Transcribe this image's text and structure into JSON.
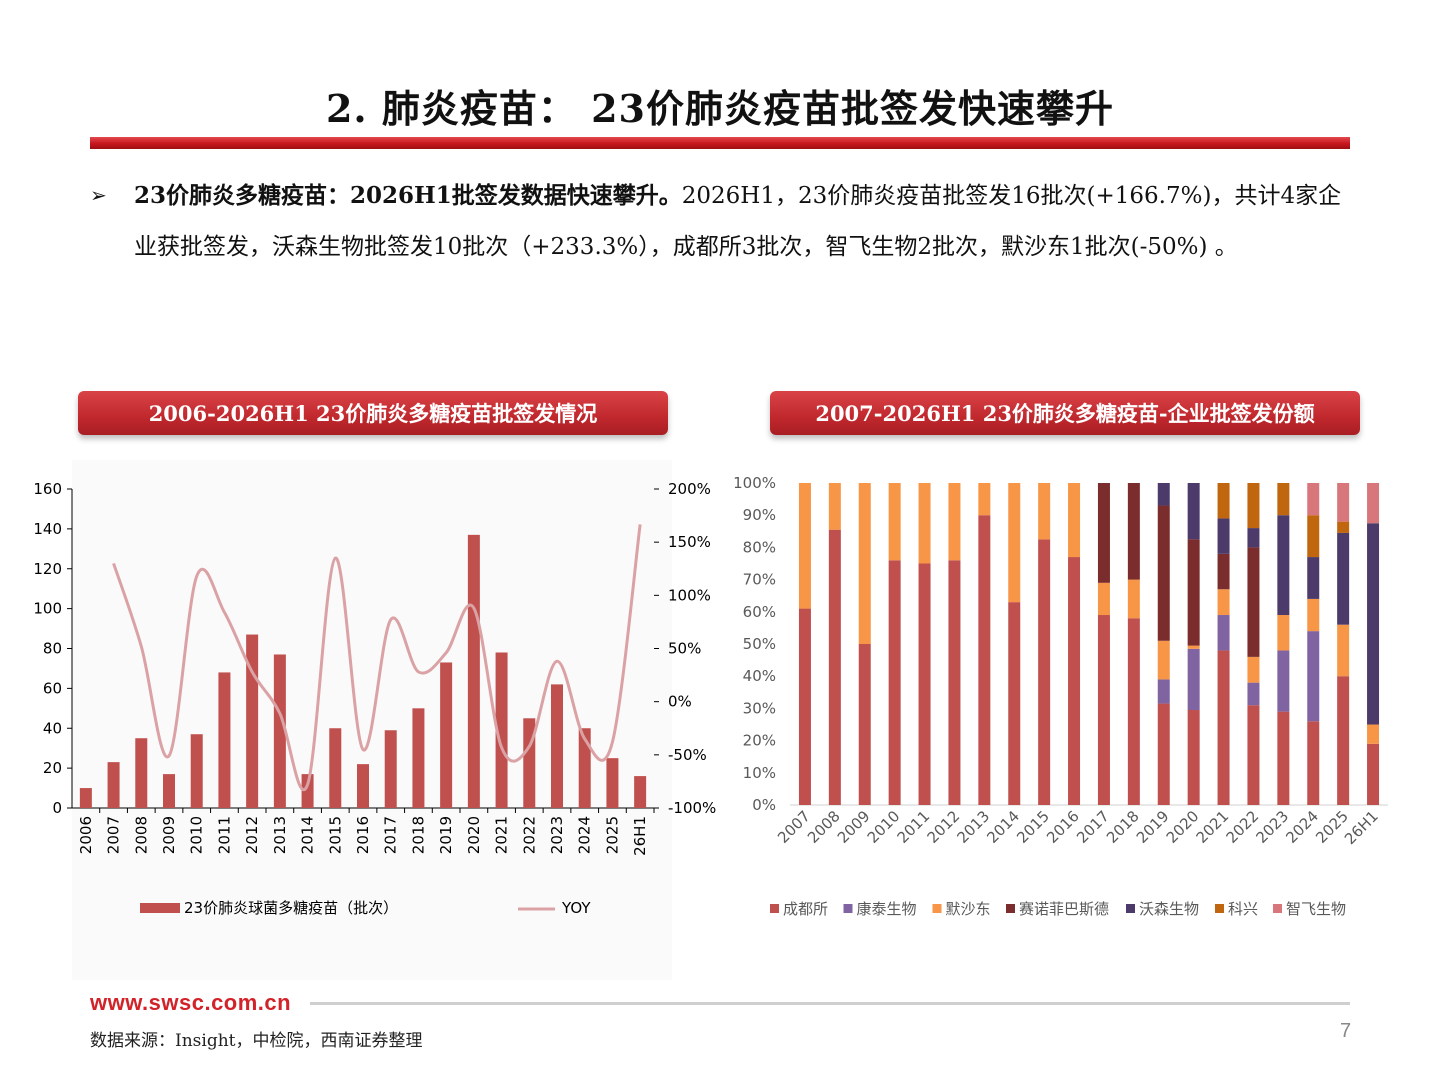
{
  "page": {
    "title": "2. 肺炎疫苗： 23价肺炎疫苗批签发快速攀升",
    "bullet_arrow": "➢",
    "bullet_bold": "23价肺炎多糖疫苗：2026H1批签发数据快速攀升。",
    "bullet_text": "2026H1，23价肺炎疫苗批签发16批次(+166.7%)，共计4家企业获批签发，沃森生物批签发10批次（+233.3%），成都所3批次，智飞生物2批次，默沙东1批次(-50%) 。",
    "footer_url": "www.swsc.com.cn",
    "source": "数据来源：Insight，中检院，西南证券整理",
    "page_number": "7"
  },
  "colors": {
    "accent_red": "#c8161d",
    "bar_red": "#c0504d",
    "yoy_line": "#dba2a5"
  },
  "chart_data": [
    {
      "type": "bar",
      "title": "2006-2026H1 23价肺炎多糖疫苗批签发情况",
      "categories": [
        "2006",
        "2007",
        "2008",
        "2009",
        "2010",
        "2011",
        "2012",
        "2013",
        "2014",
        "2015",
        "2016",
        "2017",
        "2018",
        "2019",
        "2020",
        "2021",
        "2022",
        "2023",
        "2024",
        "2025",
        "26H1"
      ],
      "series": [
        {
          "name": "23价肺炎球菌多糖疫苗（批次）",
          "type": "bar",
          "axis": "left",
          "values": [
            10,
            23,
            35,
            17,
            37,
            68,
            87,
            77,
            17,
            40,
            22,
            39,
            50,
            73,
            137,
            78,
            45,
            62,
            40,
            25,
            16
          ]
        },
        {
          "name": "YOY",
          "type": "line",
          "axis": "right",
          "values": [
            null,
            1.3,
            0.52,
            -0.51,
            1.18,
            0.84,
            0.28,
            -0.11,
            -0.78,
            1.35,
            -0.45,
            0.77,
            0.28,
            0.46,
            0.88,
            -0.43,
            -0.42,
            0.38,
            -0.35,
            -0.38,
            1.667
          ]
        }
      ],
      "ylim": [
        0,
        160
      ],
      "yticks": [
        "0",
        "20",
        "40",
        "60",
        "80",
        "100",
        "120",
        "140",
        "160"
      ],
      "y2lim": [
        -1.0,
        2.0
      ],
      "y2ticks": [
        "-100%",
        "-50%",
        "0%",
        "50%",
        "100%",
        "150%",
        "200%"
      ],
      "legend": "bottom"
    },
    {
      "type": "bar",
      "stacked": "percent",
      "title": "2007-2026H1 23价肺炎多糖疫苗-企业批签发份额",
      "categories": [
        "2007",
        "2008",
        "2009",
        "2010",
        "2011",
        "2012",
        "2013",
        "2014",
        "2015",
        "2016",
        "2017",
        "2018",
        "2019",
        "2020",
        "2021",
        "2022",
        "2023",
        "2024",
        "2025",
        "26H1"
      ],
      "yticks": [
        "0%",
        "10%",
        "20%",
        "30%",
        "40%",
        "50%",
        "60%",
        "70%",
        "80%",
        "90%",
        "100%"
      ],
      "series": [
        {
          "name": "成都所",
          "color": "#c0504d",
          "values": [
            0.61,
            0.855,
            0.5,
            0.76,
            0.75,
            0.76,
            0.9,
            0.63,
            0.825,
            0.77,
            0.59,
            0.58,
            0.315,
            0.295,
            0.48,
            0.31,
            0.29,
            0.26,
            0.4,
            0.19
          ]
        },
        {
          "name": "康泰生物",
          "color": "#8064a2",
          "values": [
            0,
            0,
            0,
            0,
            0,
            0,
            0,
            0,
            0,
            0,
            0,
            0,
            0.075,
            0.19,
            0.11,
            0.07,
            0.19,
            0.28,
            0,
            0
          ]
        },
        {
          "name": "默沙东",
          "color": "#f79646",
          "values": [
            0.39,
            0.145,
            0.5,
            0.24,
            0.25,
            0.24,
            0.1,
            0.37,
            0.175,
            0.23,
            0.1,
            0.12,
            0.12,
            0.01,
            0.08,
            0.08,
            0.11,
            0.1,
            0.16,
            0.06
          ]
        },
        {
          "name": "赛诺菲巴斯德",
          "color": "#7b2c2c",
          "values": [
            0,
            0,
            0,
            0,
            0,
            0,
            0,
            0,
            0,
            0,
            0.31,
            0.3,
            0.42,
            0.33,
            0.11,
            0.34,
            0,
            0,
            0,
            0
          ]
        },
        {
          "name": "沃森生物",
          "color": "#4c3a6a",
          "values": [
            0,
            0,
            0,
            0,
            0,
            0,
            0,
            0,
            0,
            0,
            0,
            0,
            0.07,
            0.175,
            0.11,
            0.06,
            0.31,
            0.13,
            0.285,
            0.625
          ]
        },
        {
          "name": "科兴",
          "color": "#c0660e",
          "values": [
            0,
            0,
            0,
            0,
            0,
            0,
            0,
            0,
            0,
            0,
            0,
            0,
            0,
            0,
            0.11,
            0.14,
            0.1,
            0.13,
            0.035,
            0
          ]
        },
        {
          "name": "智飞生物",
          "color": "#d8777b",
          "values": [
            0,
            0,
            0,
            0,
            0,
            0,
            0,
            0,
            0,
            0,
            0,
            0,
            0,
            0,
            0,
            0,
            0,
            0.1,
            0.12,
            0.125
          ]
        }
      ],
      "ylim": [
        0,
        1
      ],
      "legend": "bottom"
    }
  ]
}
